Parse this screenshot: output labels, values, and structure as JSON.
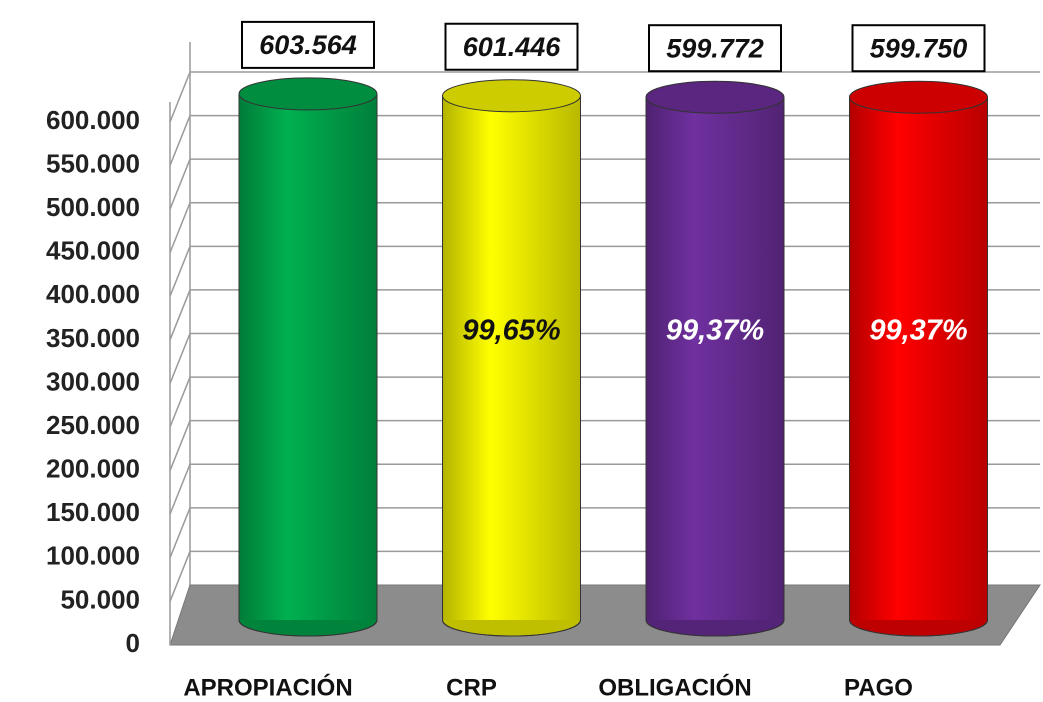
{
  "chart_data": {
    "type": "cylinder",
    "categories": [
      "APROPIACIÓN",
      "CRP",
      "OBLIGACIÓN",
      "PAGO"
    ],
    "values": [
      603564,
      601446,
      599772,
      599750
    ],
    "value_labels": [
      "603.564",
      "601.446",
      "599.772",
      "599.750"
    ],
    "percent_labels": [
      null,
      "99,65%",
      "99,37%",
      "99,37%"
    ],
    "colors": [
      "#00b050",
      "#ffff00",
      "#7030a0",
      "#ff0000"
    ],
    "ylim": [
      0,
      600000
    ],
    "yticks": [
      {
        "value": 0,
        "label": "0"
      },
      {
        "value": 50000,
        "label": "50.000"
      },
      {
        "value": 100000,
        "label": "100.000"
      },
      {
        "value": 150000,
        "label": "150.000"
      },
      {
        "value": 200000,
        "label": "200.000"
      },
      {
        "value": 250000,
        "label": "250.000"
      },
      {
        "value": 300000,
        "label": "300.000"
      },
      {
        "value": 350000,
        "label": "350.000"
      },
      {
        "value": 400000,
        "label": "400.000"
      },
      {
        "value": 450000,
        "label": "450.000"
      },
      {
        "value": 500000,
        "label": "500.000"
      },
      {
        "value": 550000,
        "label": "550.000"
      },
      {
        "value": 600000,
        "label": "600.000"
      }
    ],
    "grid": true
  }
}
